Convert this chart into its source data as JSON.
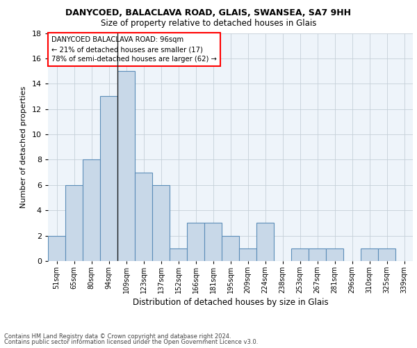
{
  "title1": "DANYCOED, BALACLAVA ROAD, GLAIS, SWANSEA, SA7 9HH",
  "title2": "Size of property relative to detached houses in Glais",
  "xlabel": "Distribution of detached houses by size in Glais",
  "ylabel": "Number of detached properties",
  "footer1": "Contains HM Land Registry data © Crown copyright and database right 2024.",
  "footer2": "Contains public sector information licensed under the Open Government Licence v3.0.",
  "annotation_line1": "DANYCOED BALACLAVA ROAD: 96sqm",
  "annotation_line2": "← 21% of detached houses are smaller (17)",
  "annotation_line3": "78% of semi-detached houses are larger (62) →",
  "bar_labels": [
    "51sqm",
    "65sqm",
    "80sqm",
    "94sqm",
    "109sqm",
    "123sqm",
    "137sqm",
    "152sqm",
    "166sqm",
    "181sqm",
    "195sqm",
    "209sqm",
    "224sqm",
    "238sqm",
    "253sqm",
    "267sqm",
    "281sqm",
    "296sqm",
    "310sqm",
    "325sqm",
    "339sqm"
  ],
  "bar_values": [
    2,
    6,
    8,
    13,
    15,
    7,
    6,
    1,
    3,
    3,
    2,
    1,
    3,
    0,
    1,
    1,
    1,
    0,
    1,
    1,
    0
  ],
  "bar_color": "#c8d8e8",
  "bar_edge_color": "#5b8db8",
  "vline_x": 3.5,
  "ylim": [
    0,
    18
  ],
  "yticks": [
    0,
    2,
    4,
    6,
    8,
    10,
    12,
    14,
    16,
    18
  ],
  "plot_bg_color": "#eef4fa"
}
